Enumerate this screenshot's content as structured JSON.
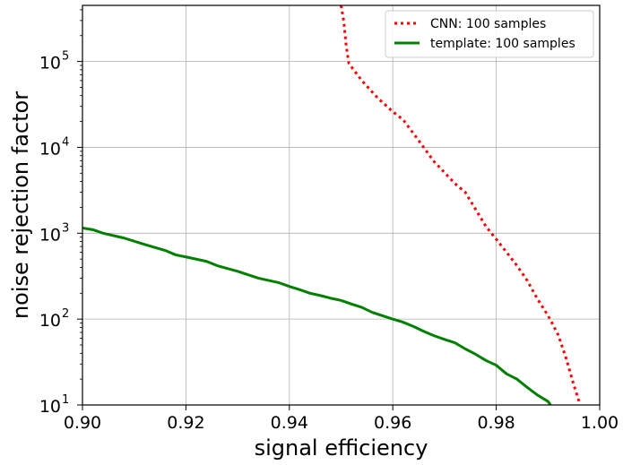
{
  "chart_data": {
    "type": "line",
    "xlabel": "signal efficiency",
    "ylabel": "noise rejection factor",
    "xlim": [
      0.9,
      1.0
    ],
    "ylim": [
      10,
      450000
    ],
    "yscale": "log",
    "grid": true,
    "legend_position": "top-right",
    "x_ticks": [
      {
        "value": 0.9,
        "label": "0.90"
      },
      {
        "value": 0.92,
        "label": "0.92"
      },
      {
        "value": 0.94,
        "label": "0.94"
      },
      {
        "value": 0.96,
        "label": "0.96"
      },
      {
        "value": 0.98,
        "label": "0.98"
      },
      {
        "value": 1.0,
        "label": "1.00"
      }
    ],
    "y_ticks": [
      {
        "value": 10,
        "base": "10",
        "exp": "1"
      },
      {
        "value": 100,
        "base": "10",
        "exp": "2"
      },
      {
        "value": 1000,
        "base": "10",
        "exp": "3"
      },
      {
        "value": 10000,
        "base": "10",
        "exp": "4"
      },
      {
        "value": 100000,
        "base": "10",
        "exp": "5"
      }
    ],
    "series": [
      {
        "name": "CNN: 100 samples",
        "color": "#ff0000",
        "style": "dotted",
        "x": [
          0.95,
          0.9505,
          0.951,
          0.9515,
          0.954,
          0.957,
          0.96,
          0.962,
          0.965,
          0.968,
          0.972,
          0.974,
          0.976,
          0.978,
          0.98,
          0.982,
          0.984,
          0.986,
          0.988,
          0.99,
          0.991,
          0.992,
          0.9935,
          0.995,
          0.996
        ],
        "y": [
          450000,
          300000,
          150000,
          95000,
          60000,
          38000,
          26000,
          21000,
          12000,
          6800,
          3800,
          3000,
          1900,
          1200,
          850,
          600,
          420,
          280,
          170,
          110,
          85,
          65,
          35,
          17,
          11
        ]
      },
      {
        "name": "template: 100 samples",
        "color": "#008000",
        "style": "solid",
        "x": [
          0.9,
          0.902,
          0.904,
          0.908,
          0.912,
          0.916,
          0.918,
          0.92,
          0.924,
          0.926,
          0.93,
          0.934,
          0.938,
          0.94,
          0.942,
          0.944,
          0.946,
          0.948,
          0.95,
          0.952,
          0.954,
          0.956,
          0.96,
          0.962,
          0.964,
          0.966,
          0.968,
          0.97,
          0.972,
          0.974,
          0.976,
          0.978,
          0.98,
          0.982,
          0.984,
          0.986,
          0.988,
          0.99,
          0.9905
        ],
        "y": [
          1150,
          1100,
          1000,
          880,
          740,
          630,
          560,
          530,
          470,
          420,
          360,
          300,
          265,
          240,
          220,
          200,
          188,
          175,
          165,
          150,
          137,
          120,
          100,
          92,
          82,
          72,
          64,
          58,
          53,
          45,
          39,
          33,
          29,
          23,
          20,
          16,
          13,
          11,
          10
        ]
      }
    ]
  }
}
